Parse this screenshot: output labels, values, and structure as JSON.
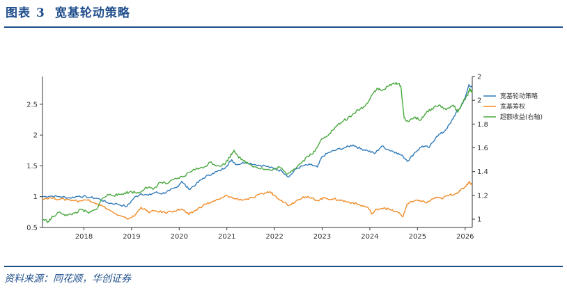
{
  "header": {
    "label": "图表",
    "number": "3",
    "title": "宽基轮动策略"
  },
  "footer": {
    "source": "资料来源：同花顺，华创证券"
  },
  "chart_data": {
    "type": "line",
    "title": "宽基轮动策略",
    "x_ticks": [
      "2018",
      "2019",
      "2020",
      "2021",
      "2022",
      "2023",
      "2024",
      "2025",
      "2026"
    ],
    "x_range": [
      2017.13,
      2026.15
    ],
    "y_left": {
      "ticks": [
        "0.5",
        "1",
        "1.5",
        "2",
        "2.5"
      ],
      "range": [
        0.5,
        2.95
      ]
    },
    "y_right": {
      "ticks": [
        "1",
        "1.2",
        "1.4",
        "1.6",
        "1.8",
        "2",
        "2"
      ],
      "range": [
        0.93,
        2.2
      ]
    },
    "legend": {
      "position": "top-right"
    },
    "series": [
      {
        "name": "宽基轮动策略",
        "color": "#2f7ab9",
        "axis": "left",
        "points": [
          [
            2017.13,
            1.0
          ],
          [
            2017.3,
            1.01
          ],
          [
            2017.5,
            1.0
          ],
          [
            2017.7,
            0.98
          ],
          [
            2017.9,
            1.01
          ],
          [
            2018.1,
            0.99
          ],
          [
            2018.3,
            0.97
          ],
          [
            2018.5,
            0.9
          ],
          [
            2018.7,
            0.88
          ],
          [
            2018.9,
            0.84
          ],
          [
            2019.05,
            0.98
          ],
          [
            2019.2,
            1.05
          ],
          [
            2019.35,
            1.02
          ],
          [
            2019.5,
            1.07
          ],
          [
            2019.65,
            1.05
          ],
          [
            2019.8,
            1.1
          ],
          [
            2019.95,
            1.15
          ],
          [
            2020.05,
            1.25
          ],
          [
            2020.2,
            1.12
          ],
          [
            2020.35,
            1.2
          ],
          [
            2020.5,
            1.3
          ],
          [
            2020.7,
            1.38
          ],
          [
            2020.85,
            1.42
          ],
          [
            2021.0,
            1.5
          ],
          [
            2021.1,
            1.6
          ],
          [
            2021.2,
            1.52
          ],
          [
            2021.4,
            1.56
          ],
          [
            2021.6,
            1.52
          ],
          [
            2021.8,
            1.5
          ],
          [
            2022.0,
            1.45
          ],
          [
            2022.15,
            1.42
          ],
          [
            2022.3,
            1.32
          ],
          [
            2022.45,
            1.45
          ],
          [
            2022.6,
            1.5
          ],
          [
            2022.75,
            1.52
          ],
          [
            2022.9,
            1.48
          ],
          [
            2023.0,
            1.65
          ],
          [
            2023.15,
            1.72
          ],
          [
            2023.3,
            1.76
          ],
          [
            2023.5,
            1.8
          ],
          [
            2023.65,
            1.84
          ],
          [
            2023.8,
            1.78
          ],
          [
            2023.95,
            1.75
          ],
          [
            2024.1,
            1.7
          ],
          [
            2024.25,
            1.82
          ],
          [
            2024.4,
            1.76
          ],
          [
            2024.55,
            1.72
          ],
          [
            2024.7,
            1.65
          ],
          [
            2024.8,
            1.58
          ],
          [
            2024.95,
            1.72
          ],
          [
            2025.1,
            1.82
          ],
          [
            2025.25,
            1.8
          ],
          [
            2025.4,
            1.98
          ],
          [
            2025.55,
            2.05
          ],
          [
            2025.7,
            2.2
          ],
          [
            2025.8,
            2.35
          ],
          [
            2025.9,
            2.45
          ],
          [
            2026.0,
            2.6
          ],
          [
            2026.08,
            2.82
          ],
          [
            2026.15,
            2.76
          ]
        ]
      },
      {
        "name": "宽基筹权",
        "color": "#f08a24",
        "axis": "left",
        "points": [
          [
            2017.13,
            0.97
          ],
          [
            2017.3,
            0.98
          ],
          [
            2017.5,
            0.96
          ],
          [
            2017.7,
            0.95
          ],
          [
            2017.9,
            0.93
          ],
          [
            2018.1,
            0.95
          ],
          [
            2018.3,
            0.88
          ],
          [
            2018.5,
            0.8
          ],
          [
            2018.7,
            0.7
          ],
          [
            2018.9,
            0.64
          ],
          [
            2019.05,
            0.68
          ],
          [
            2019.2,
            0.83
          ],
          [
            2019.35,
            0.75
          ],
          [
            2019.5,
            0.77
          ],
          [
            2019.7,
            0.74
          ],
          [
            2019.9,
            0.77
          ],
          [
            2020.05,
            0.8
          ],
          [
            2020.2,
            0.71
          ],
          [
            2020.35,
            0.78
          ],
          [
            2020.5,
            0.86
          ],
          [
            2020.7,
            0.92
          ],
          [
            2020.85,
            0.96
          ],
          [
            2021.0,
            1.02
          ],
          [
            2021.15,
            0.97
          ],
          [
            2021.35,
            0.95
          ],
          [
            2021.55,
            0.98
          ],
          [
            2021.75,
            1.05
          ],
          [
            2021.9,
            1.08
          ],
          [
            2022.0,
            1.02
          ],
          [
            2022.15,
            0.94
          ],
          [
            2022.3,
            0.86
          ],
          [
            2022.45,
            0.93
          ],
          [
            2022.6,
            1.0
          ],
          [
            2022.75,
            0.98
          ],
          [
            2022.9,
            0.94
          ],
          [
            2023.05,
            0.98
          ],
          [
            2023.2,
            0.96
          ],
          [
            2023.35,
            0.95
          ],
          [
            2023.5,
            0.92
          ],
          [
            2023.65,
            0.9
          ],
          [
            2023.8,
            0.86
          ],
          [
            2023.95,
            0.83
          ],
          [
            2024.05,
            0.72
          ],
          [
            2024.15,
            0.8
          ],
          [
            2024.3,
            0.82
          ],
          [
            2024.45,
            0.78
          ],
          [
            2024.6,
            0.74
          ],
          [
            2024.7,
            0.68
          ],
          [
            2024.78,
            0.88
          ],
          [
            2024.9,
            0.92
          ],
          [
            2025.05,
            0.94
          ],
          [
            2025.2,
            0.9
          ],
          [
            2025.35,
            0.98
          ],
          [
            2025.5,
            0.97
          ],
          [
            2025.65,
            1.02
          ],
          [
            2025.8,
            1.05
          ],
          [
            2025.9,
            1.1
          ],
          [
            2026.0,
            1.16
          ],
          [
            2026.08,
            1.24
          ],
          [
            2026.15,
            1.2
          ]
        ]
      },
      {
        "name": "超额收益(右轴)",
        "color": "#4aa83f",
        "axis": "right",
        "points": [
          [
            2017.13,
            1.0
          ],
          [
            2017.25,
            0.98
          ],
          [
            2017.35,
            1.02
          ],
          [
            2017.5,
            1.06
          ],
          [
            2017.65,
            1.03
          ],
          [
            2017.8,
            1.05
          ],
          [
            2017.95,
            1.08
          ],
          [
            2018.1,
            1.05
          ],
          [
            2018.25,
            1.08
          ],
          [
            2018.4,
            1.18
          ],
          [
            2018.55,
            1.21
          ],
          [
            2018.7,
            1.2
          ],
          [
            2018.85,
            1.22
          ],
          [
            2019.0,
            1.23
          ],
          [
            2019.15,
            1.22
          ],
          [
            2019.3,
            1.27
          ],
          [
            2019.45,
            1.25
          ],
          [
            2019.6,
            1.31
          ],
          [
            2019.75,
            1.3
          ],
          [
            2019.95,
            1.34
          ],
          [
            2020.1,
            1.36
          ],
          [
            2020.3,
            1.42
          ],
          [
            2020.5,
            1.43
          ],
          [
            2020.65,
            1.48
          ],
          [
            2020.8,
            1.45
          ],
          [
            2020.95,
            1.46
          ],
          [
            2021.05,
            1.52
          ],
          [
            2021.15,
            1.58
          ],
          [
            2021.3,
            1.5
          ],
          [
            2021.45,
            1.47
          ],
          [
            2021.6,
            1.44
          ],
          [
            2021.8,
            1.42
          ],
          [
            2021.95,
            1.41
          ],
          [
            2022.1,
            1.44
          ],
          [
            2022.25,
            1.38
          ],
          [
            2022.4,
            1.42
          ],
          [
            2022.55,
            1.47
          ],
          [
            2022.7,
            1.53
          ],
          [
            2022.85,
            1.57
          ],
          [
            2023.0,
            1.68
          ],
          [
            2023.15,
            1.72
          ],
          [
            2023.3,
            1.78
          ],
          [
            2023.45,
            1.83
          ],
          [
            2023.6,
            1.86
          ],
          [
            2023.75,
            1.92
          ],
          [
            2023.9,
            1.95
          ],
          [
            2024.05,
            2.05
          ],
          [
            2024.15,
            2.1
          ],
          [
            2024.25,
            2.08
          ],
          [
            2024.4,
            2.12
          ],
          [
            2024.55,
            2.15
          ],
          [
            2024.65,
            2.12
          ],
          [
            2024.72,
            1.85
          ],
          [
            2024.82,
            1.82
          ],
          [
            2024.95,
            1.86
          ],
          [
            2025.05,
            1.83
          ],
          [
            2025.15,
            1.88
          ],
          [
            2025.3,
            1.93
          ],
          [
            2025.45,
            1.96
          ],
          [
            2025.6,
            1.92
          ],
          [
            2025.75,
            1.96
          ],
          [
            2025.85,
            1.9
          ],
          [
            2025.95,
            1.98
          ],
          [
            2026.05,
            2.04
          ],
          [
            2026.1,
            2.1
          ],
          [
            2026.15,
            2.06
          ]
        ]
      }
    ]
  }
}
